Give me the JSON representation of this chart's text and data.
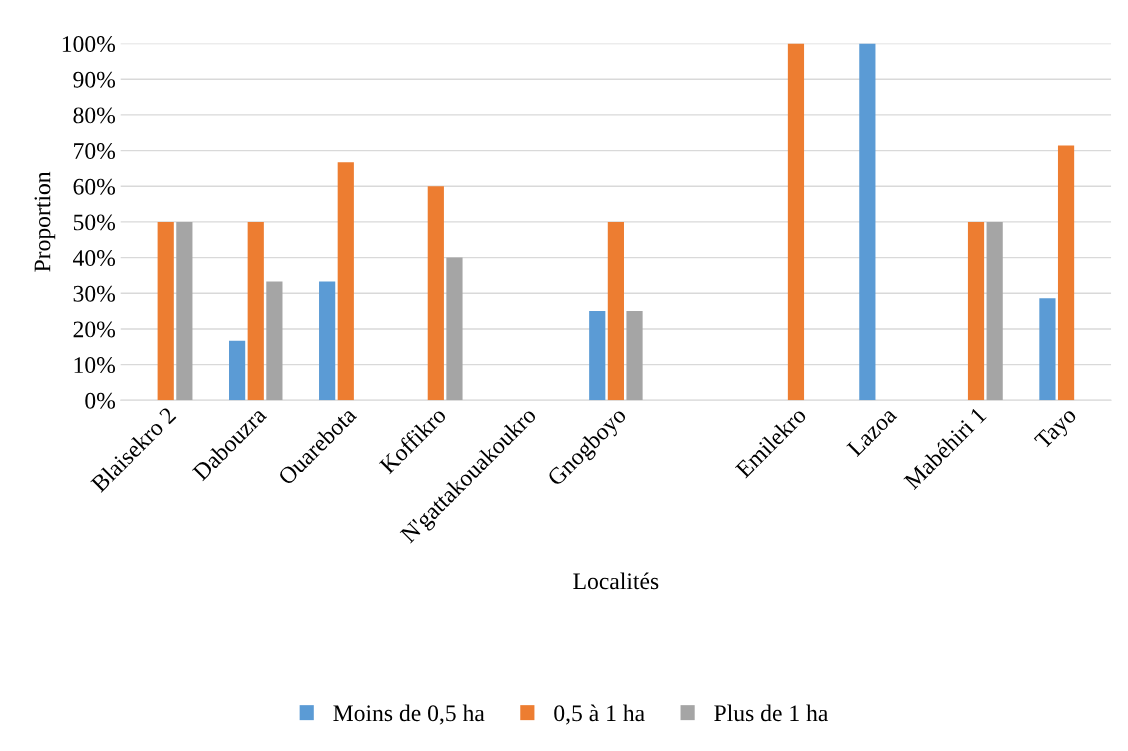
{
  "chart_data": {
    "type": "bar",
    "xlabel": "Localités",
    "ylabel": "Proportion",
    "categories": [
      "Blaisekro 2",
      "Dabouzra",
      "Ouarebota",
      "Koffikro",
      "N'gattakouakoukro",
      "Gnogboyo",
      null,
      "Emilekro",
      "Lazoa",
      "Mabéhiri 1",
      "Tayo"
    ],
    "series": [
      {
        "name": "Moins de 0,5 ha",
        "color": "#5b9bd5",
        "values": [
          0,
          16.7,
          33.3,
          0,
          0,
          25,
          null,
          0,
          100,
          0,
          28.6
        ]
      },
      {
        "name": "0,5 à 1 ha",
        "color": "#ed7d31",
        "values": [
          50,
          50,
          66.7,
          60,
          0,
          50,
          null,
          100,
          0,
          50,
          71.4
        ]
      },
      {
        "name": "Plus de 1 ha",
        "color": "#a5a5a5",
        "values": [
          50,
          33.3,
          0,
          40,
          0,
          25,
          null,
          0,
          0,
          50,
          0
        ]
      }
    ],
    "ylim": [
      0,
      100
    ],
    "yticks": [
      {
        "value": 0,
        "label": "0%"
      },
      {
        "value": 10,
        "label": "10%"
      },
      {
        "value": 20,
        "label": "20%"
      },
      {
        "value": 30,
        "label": "30%"
      },
      {
        "value": 40,
        "label": "40%"
      },
      {
        "value": 50,
        "label": "50%"
      },
      {
        "value": 60,
        "label": "60%"
      },
      {
        "value": 70,
        "label": "70%"
      },
      {
        "value": 80,
        "label": "80%"
      },
      {
        "value": 90,
        "label": "90%"
      },
      {
        "value": 100,
        "label": "100%"
      }
    ],
    "grid": "y",
    "legend": "bottom"
  }
}
